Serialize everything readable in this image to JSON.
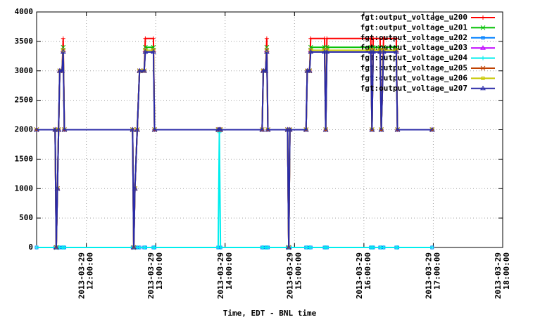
{
  "chart_data": {
    "type": "line",
    "xlabel": "Time, EDT - BNL time",
    "x": [
      "2013-03-29 11:17:00",
      "2013-03-29 11:33:00",
      "2013-03-29 11:34:00",
      "2013-03-29 11:35:00",
      "2013-03-29 11:36:00",
      "2013-03-29 11:37:00",
      "2013-03-29 11:39:00",
      "2013-03-29 11:40:00",
      "2013-03-29 11:41:00",
      "2013-03-29 12:40:00",
      "2013-03-29 12:41:00",
      "2013-03-29 12:42:00",
      "2013-03-29 12:44:00",
      "2013-03-29 12:46:00",
      "2013-03-29 12:50:00",
      "2013-03-29 12:51:00",
      "2013-03-29 12:58:00",
      "2013-03-29 12:59:00",
      "2013-03-29 13:54:00",
      "2013-03-29 13:55:00",
      "2013-03-29 13:56:00",
      "2013-03-29 14:32:00",
      "2013-03-29 14:33:00",
      "2013-03-29 14:35:00",
      "2013-03-29 14:36:00",
      "2013-03-29 14:37:00",
      "2013-03-29 14:54:00",
      "2013-03-29 14:55:00",
      "2013-03-29 14:56:00",
      "2013-03-29 15:10:00",
      "2013-03-29 15:11:00",
      "2013-03-29 15:13:00",
      "2013-03-29 15:14:00",
      "2013-03-29 15:26:00",
      "2013-03-29 15:27:00",
      "2013-03-29 15:28:00",
      "2013-03-29 16:06:00",
      "2013-03-29 16:07:00",
      "2013-03-29 16:08:00",
      "2013-03-29 16:14:00",
      "2013-03-29 16:15:00",
      "2013-03-29 16:17:00",
      "2013-03-29 16:28:00",
      "2013-03-29 16:29:00",
      "2013-03-29 16:59:00"
    ],
    "series": [
      {
        "name": "fgt:output_voltage_u200",
        "color": "#ff0000",
        "values": [
          2000,
          2000,
          0,
          1000,
          2000,
          3000,
          3000,
          3550,
          2000,
          2000,
          0,
          1000,
          2000,
          3000,
          3000,
          3550,
          3550,
          2000,
          2000,
          2000,
          2000,
          2000,
          3000,
          3000,
          3550,
          2000,
          2000,
          0,
          2000,
          2000,
          3000,
          3000,
          3550,
          3550,
          2000,
          3550,
          3550,
          2000,
          3550,
          3550,
          2000,
          3550,
          3550,
          2000,
          2000
        ]
      },
      {
        "name": "fgt:output_voltage_u201",
        "color": "#00c000",
        "values": [
          2000,
          2000,
          0,
          1000,
          2000,
          3000,
          3000,
          3400,
          2000,
          2000,
          0,
          1000,
          2000,
          3000,
          3000,
          3400,
          3400,
          2000,
          2000,
          2000,
          2000,
          2000,
          3000,
          3000,
          3400,
          2000,
          2000,
          0,
          2000,
          2000,
          3000,
          3000,
          3400,
          3400,
          2000,
          3400,
          3400,
          2000,
          3400,
          3400,
          2000,
          3400,
          3400,
          2000,
          2000
        ]
      },
      {
        "name": "fgt:output_voltage_u202",
        "color": "#0080ff",
        "values": [
          0,
          0,
          0,
          0,
          0,
          0,
          0,
          0,
          0,
          0,
          0,
          0,
          0,
          0,
          0,
          0,
          0,
          0,
          0,
          0,
          0,
          0,
          0,
          0,
          0,
          0,
          0,
          0,
          0,
          0,
          0,
          0,
          0,
          0,
          0,
          0,
          0,
          0,
          0,
          0,
          0,
          0,
          0,
          0,
          0
        ]
      },
      {
        "name": "fgt:output_voltage_u203",
        "color": "#c000ff",
        "values": [
          2000,
          2000,
          0,
          1000,
          2000,
          3000,
          3000,
          3350,
          2000,
          2000,
          0,
          1000,
          2000,
          3000,
          3000,
          3350,
          3350,
          2000,
          2000,
          2000,
          2000,
          2000,
          3000,
          3000,
          3350,
          2000,
          2000,
          0,
          2000,
          2000,
          3000,
          3000,
          3350,
          3350,
          2000,
          3350,
          3350,
          2000,
          3350,
          3350,
          2000,
          3350,
          3350,
          2000,
          2000
        ]
      },
      {
        "name": "fgt:output_voltage_u204",
        "color": "#00eeee",
        "values": [
          0,
          0,
          0,
          0,
          0,
          0,
          0,
          0,
          0,
          0,
          0,
          0,
          0,
          0,
          0,
          0,
          0,
          0,
          0,
          1950,
          0,
          0,
          0,
          0,
          0,
          0,
          0,
          0,
          0,
          0,
          0,
          0,
          0,
          0,
          0,
          0,
          0,
          0,
          0,
          0,
          0,
          0,
          0,
          0,
          0
        ]
      },
      {
        "name": "fgt:output_voltage_u205",
        "color": "#c04000",
        "values": [
          2000,
          2000,
          0,
          1000,
          2000,
          3000,
          3000,
          3350,
          2000,
          2000,
          0,
          1000,
          2000,
          3000,
          3000,
          3350,
          3350,
          2000,
          2000,
          2000,
          2000,
          2000,
          3000,
          3000,
          3350,
          2000,
          2000,
          0,
          2000,
          2000,
          3000,
          3000,
          3350,
          3350,
          2000,
          3350,
          3350,
          2000,
          3350,
          3350,
          2000,
          3350,
          3350,
          2000,
          2000
        ]
      },
      {
        "name": "fgt:output_voltage_u206",
        "color": "#c8c800",
        "values": [
          2000,
          2000,
          0,
          1000,
          2000,
          3000,
          3000,
          3350,
          2000,
          2000,
          0,
          1000,
          2000,
          3000,
          3000,
          3350,
          3350,
          2000,
          2000,
          2000,
          2000,
          2000,
          3000,
          3000,
          3350,
          2000,
          2000,
          0,
          2000,
          2000,
          3000,
          3000,
          3350,
          3350,
          2000,
          3350,
          3350,
          2000,
          3350,
          3350,
          2000,
          3350,
          3350,
          2000,
          2000
        ]
      },
      {
        "name": "fgt:output_voltage_u207",
        "color": "#2a2aa8",
        "values": [
          2000,
          2000,
          0,
          1000,
          2000,
          3000,
          3000,
          3320,
          2000,
          2000,
          0,
          1000,
          2000,
          3000,
          3000,
          3320,
          3320,
          2000,
          2000,
          2000,
          2000,
          2000,
          3000,
          3000,
          3320,
          2000,
          2000,
          0,
          2000,
          2000,
          3000,
          3000,
          3320,
          3320,
          2000,
          3320,
          3320,
          2000,
          3320,
          3320,
          2000,
          3320,
          3320,
          2000,
          2000
        ]
      }
    ],
    "xlim": [
      "2013-03-29 11:17:00",
      "2013-03-29 18:00:00"
    ],
    "xticks": [
      "2013-03-29 12:00:00",
      "2013-03-29 13:00:00",
      "2013-03-29 14:00:00",
      "2013-03-29 15:00:00",
      "2013-03-29 16:00:00",
      "2013-03-29 17:00:00",
      "2013-03-29 18:00:00"
    ],
    "ylim": [
      0,
      4000
    ],
    "yticks": [
      0,
      500,
      1000,
      1500,
      2000,
      2500,
      3000,
      3500,
      4000
    ],
    "grid": true,
    "legend": "upper right"
  }
}
